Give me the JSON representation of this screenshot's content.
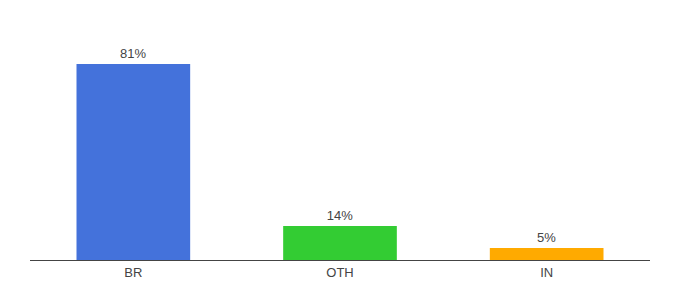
{
  "chart_data": {
    "type": "bar",
    "categories": [
      "BR",
      "OTH",
      "IN"
    ],
    "values": [
      81,
      14,
      5
    ],
    "value_labels": [
      "81%",
      "14%",
      "5%"
    ],
    "data_labels": true,
    "colors": [
      "#4472db",
      "#33cc33",
      "#ffaa00"
    ],
    "ylim": [
      0,
      95
    ],
    "grid": false,
    "tick_labels": "x"
  }
}
